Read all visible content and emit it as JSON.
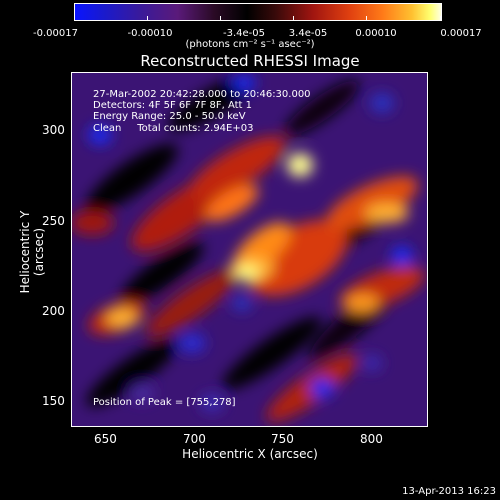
{
  "colorbar": {
    "tick_labels": [
      "-0.00017",
      "-0.00010",
      "-3.4e-05",
      "3.4e-05",
      "0.00010",
      "0.00017"
    ],
    "units": "(photons cm⁻² s⁻¹ asec⁻²)",
    "scale_colors": [
      "#0a14ff",
      "#5a1a7a",
      "#000000",
      "#a01510",
      "#ff7a18",
      "#ffffe0"
    ]
  },
  "title": "Reconstructed RHESSI Image",
  "annotations": {
    "time_range": "27-Mar-2002 20:42:28.000 to 20:46:30.000",
    "detectors": "Detectors: 4F 5F 6F 7F 8F, Att 1",
    "energy": "Energy Range: 25.0 - 50.0 keV",
    "method": "Clean     Total counts: 2.94E+03",
    "peak": "Position of Peak = [755,278]"
  },
  "x_axis": {
    "title": "Heliocentric X (arcsec)",
    "ticks": [
      "650",
      "700",
      "750",
      "800"
    ]
  },
  "y_axis": {
    "title": "Heliocentric Y (arcsec)",
    "ticks": [
      "150",
      "200",
      "250",
      "300"
    ]
  },
  "footer_timestamp": "13-Apr-2013 16:23"
}
